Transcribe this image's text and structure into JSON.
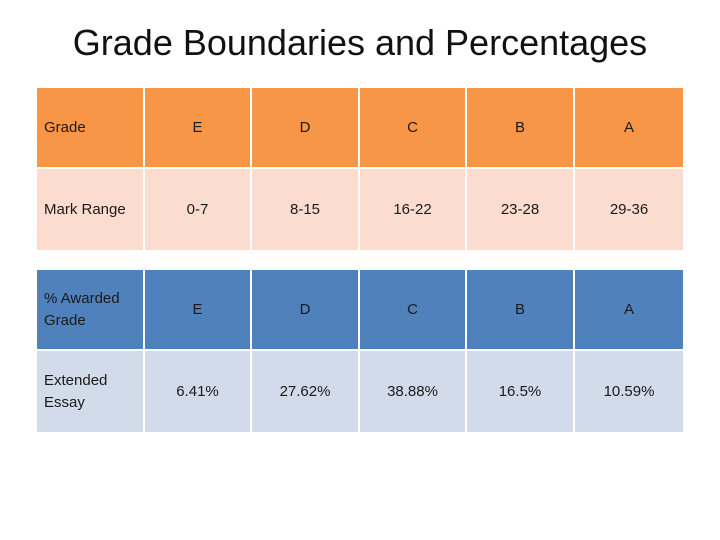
{
  "title": "Grade Boundaries and Percentages",
  "boundaries": {
    "header": {
      "label": "Grade",
      "grades": [
        "E",
        "D",
        "C",
        "B",
        "A"
      ]
    },
    "row": {
      "label": "Mark Range",
      "values": [
        "0-7",
        "8-15",
        "16-22",
        "23-28",
        "29-36"
      ]
    }
  },
  "percentages": {
    "header": {
      "label": "% Awarded Grade",
      "grades": [
        "E",
        "D",
        "C",
        "B",
        "A"
      ]
    },
    "row": {
      "label": "Extended Essay",
      "values": [
        "6.41%",
        "27.62%",
        "38.88%",
        "16.5%",
        "10.59%"
      ]
    }
  },
  "colors": {
    "orange_header": "#f79646",
    "peach_row": "#fcdcce",
    "blue_header": "#4f81bd",
    "light_blue_row": "#d1dbea"
  }
}
